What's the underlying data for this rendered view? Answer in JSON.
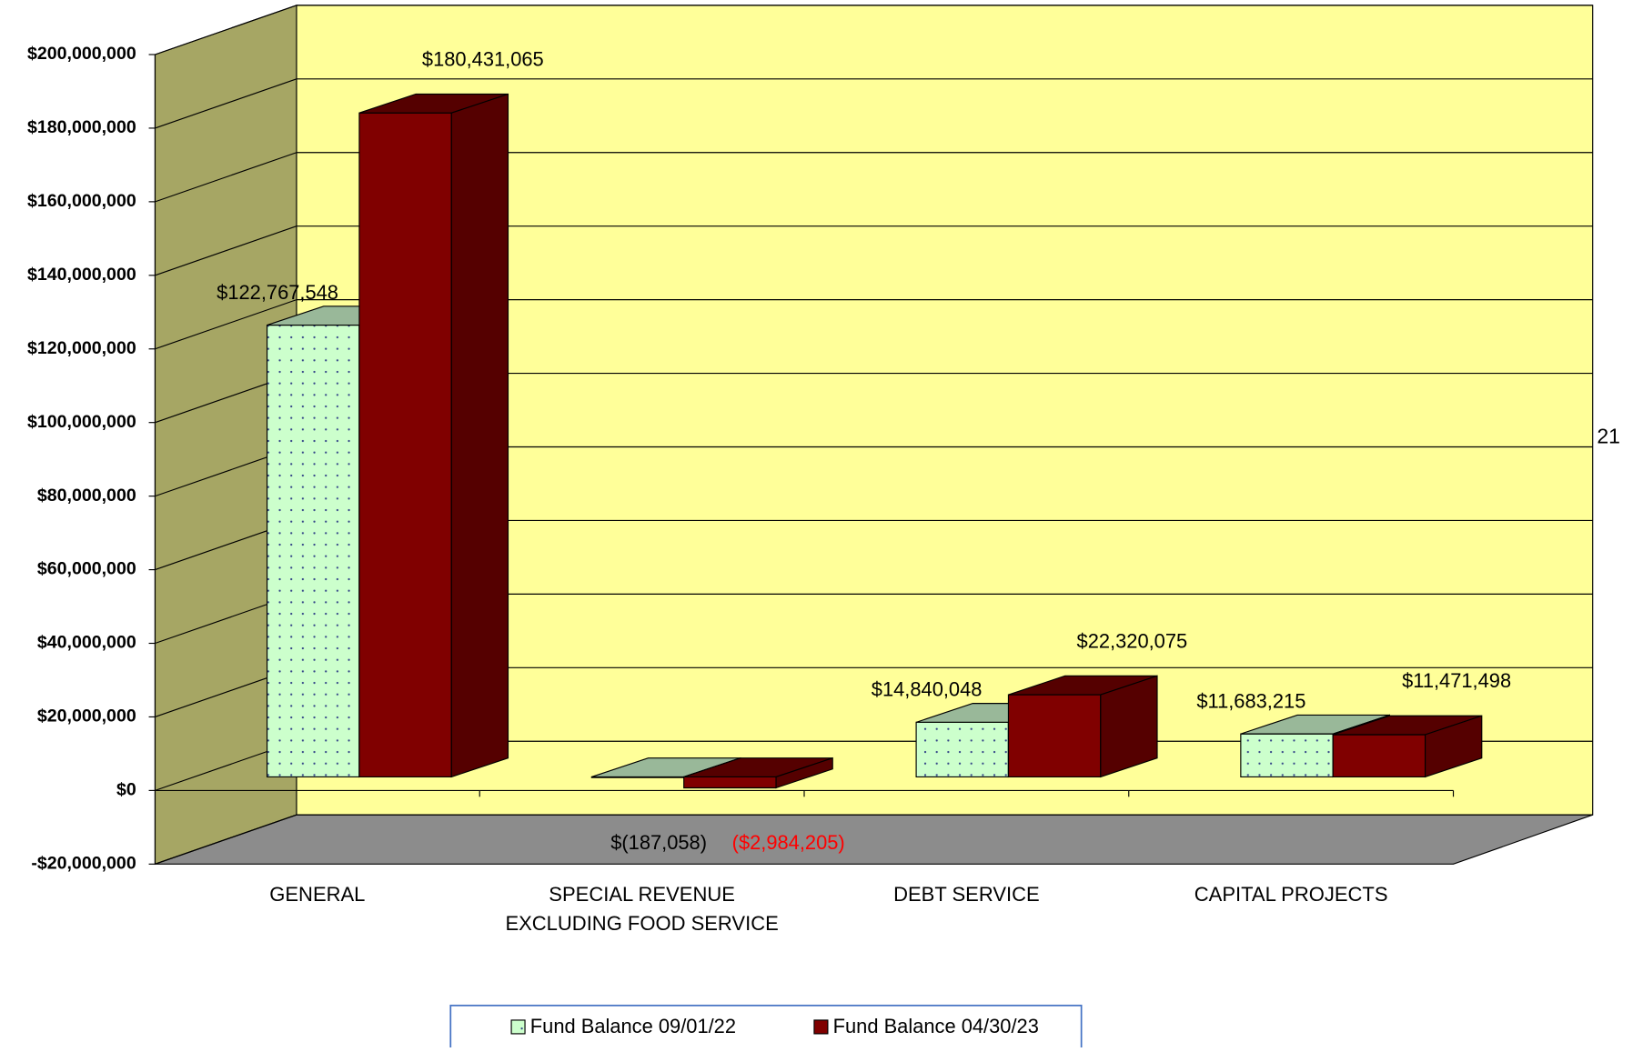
{
  "chart_data": {
    "type": "bar3d",
    "categories": [
      "GENERAL",
      "SPECIAL REVENUE\nEXCLUDING FOOD SERVICE",
      "DEBT SERVICE",
      "CAPITAL PROJECTS"
    ],
    "series": [
      {
        "name": "Fund Balance 09/01/22",
        "color": "#ccffcc",
        "side_color": "#99b899",
        "pattern": "dots",
        "values": [
          122767548,
          -187058,
          14840048,
          11683215
        ],
        "value_labels": [
          "$122,767,548",
          "$(187,058)",
          "$14,840,048",
          "$11,683,215"
        ]
      },
      {
        "name": "Fund Balance 04/30/23",
        "color": "#800000",
        "side_color": "#550000",
        "negative_label_color": "#ff0000",
        "values": [
          180431065,
          -2984205,
          22320075,
          11471498
        ],
        "value_labels": [
          "$180,431,065",
          "($2,984,205)",
          "$22,320,075",
          "$11,471,498"
        ]
      }
    ],
    "ylim": [
      -20000000,
      200000000
    ],
    "yticks": [
      {
        "value": -20000000,
        "label": "-$20,000,000"
      },
      {
        "value": 0,
        "label": "$0"
      },
      {
        "value": 20000000,
        "label": "$20,000,000"
      },
      {
        "value": 40000000,
        "label": "$40,000,000"
      },
      {
        "value": 60000000,
        "label": "$60,000,000"
      },
      {
        "value": 80000000,
        "label": "$80,000,000"
      },
      {
        "value": 100000000,
        "label": "$100,000,000"
      },
      {
        "value": 120000000,
        "label": "$120,000,000"
      },
      {
        "value": 140000000,
        "label": "$140,000,000"
      },
      {
        "value": 160000000,
        "label": "$160,000,000"
      },
      {
        "value": 180000000,
        "label": "$180,000,000"
      },
      {
        "value": 200000000,
        "label": "$200,000,000"
      }
    ],
    "grid": true,
    "legend": "bottom",
    "wall_color": "#ffff99",
    "side_wall_color": "#a6a664",
    "floor_color": "#8c8c8c",
    "annotations": [
      "21"
    ]
  }
}
